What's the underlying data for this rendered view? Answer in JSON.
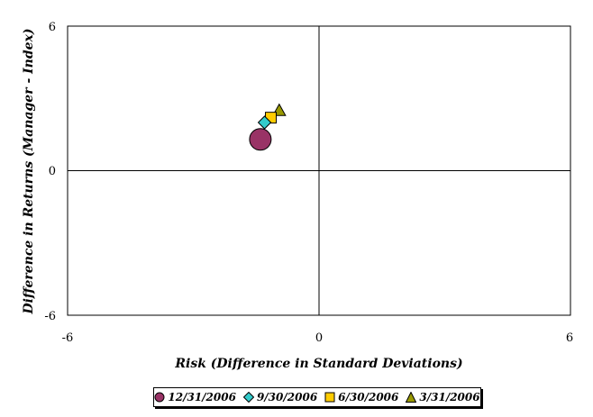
{
  "chart_data": {
    "type": "scatter",
    "title": "",
    "xlabel": "Risk (Difference in Standard Deviations)",
    "ylabel": "Difference in Returns (Manager - Index)",
    "xlim": [
      -6,
      6
    ],
    "ylim": [
      -6,
      6
    ],
    "x_ticks": [
      "-6",
      "0",
      "6"
    ],
    "y_ticks": [
      "6",
      "0",
      "-6"
    ],
    "grid": false,
    "legend_position": "bottom-center",
    "series": [
      {
        "name": "12/31/2006",
        "marker": "circle",
        "color": "#993366",
        "x": [
          -1.4
        ],
        "y": [
          1.3
        ]
      },
      {
        "name": "9/30/2006",
        "marker": "diamond",
        "color": "#33CCCC",
        "x": [
          -1.3
        ],
        "y": [
          2.0
        ]
      },
      {
        "name": "6/30/2006",
        "marker": "square",
        "color": "#FFCC00",
        "x": [
          -1.15
        ],
        "y": [
          2.2
        ]
      },
      {
        "name": "3/31/2006",
        "marker": "triangle",
        "color": "#999900",
        "x": [
          -0.95
        ],
        "y": [
          2.5
        ]
      }
    ]
  }
}
